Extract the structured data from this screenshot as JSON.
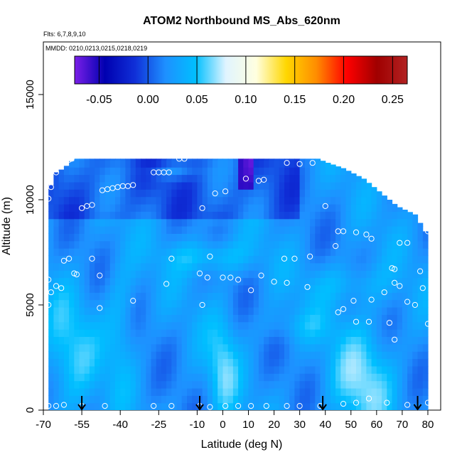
{
  "chart_data": {
    "type": "heatmap",
    "title": "ATOM2 Northbound MS_Abs_620nm",
    "flights_label": "Flts: 6,7,8,9,10",
    "dates_label": "MMDD: 0210,0213,0215,0218,0219",
    "xlabel": "Latitude (deg N)",
    "ylabel": "Altitude (m)",
    "xlim": [
      -70,
      85
    ],
    "ylim": [
      0,
      17500
    ],
    "x_ticks": [
      -70,
      -55,
      -40,
      -25,
      -10,
      0,
      10,
      20,
      30,
      40,
      50,
      60,
      70,
      80
    ],
    "x_tick_labels": [
      "-70",
      "-55",
      "-40",
      "-25",
      "-10",
      "0",
      "10",
      "20",
      "30",
      "40",
      "50",
      "60",
      "70",
      "80"
    ],
    "y_ticks": [
      0,
      5000,
      10000,
      15000
    ],
    "y_tick_labels": [
      "0",
      "5000",
      "10000",
      "15000"
    ],
    "colorbar": {
      "range": [
        -0.075,
        0.265
      ],
      "ticks": [
        -0.05,
        0.0,
        0.05,
        0.1,
        0.15,
        0.2,
        0.25
      ],
      "tick_labels": [
        "-0.05",
        "0.00",
        "0.05",
        "0.10",
        "0.15",
        "0.20",
        "0.25"
      ],
      "colors": [
        "#7B1FE8",
        "#0000B0",
        "#1030D8",
        "#1E90FF",
        "#00BFFF",
        "#E0F4FF",
        "#FFFFE0",
        "#FFD700",
        "#FF8C00",
        "#FF0000",
        "#A00000",
        "#B22222"
      ]
    },
    "profile_top": [
      [
        -68,
        10000
      ],
      [
        -67,
        10700
      ],
      [
        -65,
        11300
      ],
      [
        -62,
        11500
      ],
      [
        -58,
        11950
      ],
      [
        -40,
        11950
      ],
      [
        -25,
        11950
      ],
      [
        -10,
        11950
      ],
      [
        0,
        11950
      ],
      [
        10,
        11950
      ],
      [
        17,
        11950
      ],
      [
        25,
        11950
      ],
      [
        37,
        11950
      ],
      [
        40,
        11800
      ],
      [
        47,
        11500
      ],
      [
        55,
        11000
      ],
      [
        62,
        10300
      ],
      [
        68,
        9700
      ],
      [
        75,
        9300
      ],
      [
        79,
        8500
      ],
      [
        80,
        6000
      ],
      [
        80,
        3500
      ],
      [
        80,
        0
      ]
    ],
    "sample_points": [
      [
        -68,
        10050
      ],
      [
        -67,
        10600
      ],
      [
        -65,
        11300
      ],
      [
        -60,
        11900
      ],
      [
        -59,
        11950
      ],
      [
        -47,
        10450
      ],
      [
        -45,
        10500
      ],
      [
        -43,
        10550
      ],
      [
        -41,
        10600
      ],
      [
        -39,
        10650
      ],
      [
        -37,
        10650
      ],
      [
        -35,
        10700
      ],
      [
        -27,
        11300
      ],
      [
        -25,
        11300
      ],
      [
        -23,
        11300
      ],
      [
        -21,
        11300
      ],
      [
        -17,
        11950
      ],
      [
        -15,
        11950
      ],
      [
        -3,
        10300
      ],
      [
        1,
        10400
      ],
      [
        9,
        11000
      ],
      [
        14,
        10900
      ],
      [
        16,
        10950
      ],
      [
        25,
        11750
      ],
      [
        30,
        11700
      ],
      [
        35,
        11750
      ],
      [
        -55,
        9600
      ],
      [
        -53,
        9700
      ],
      [
        -51,
        9750
      ],
      [
        -8,
        9600
      ],
      [
        40,
        9700
      ],
      [
        45,
        8500
      ],
      [
        47,
        8500
      ],
      [
        52,
        8450
      ],
      [
        56,
        8350
      ],
      [
        58,
        8150
      ],
      [
        69,
        7950
      ],
      [
        72,
        7950
      ],
      [
        80,
        8500
      ],
      [
        -62,
        7100
      ],
      [
        -60,
        7200
      ],
      [
        -58,
        6500
      ],
      [
        -57,
        6450
      ],
      [
        -51,
        7200
      ],
      [
        -20,
        7200
      ],
      [
        -5,
        7300
      ],
      [
        24,
        7200
      ],
      [
        28,
        7200
      ],
      [
        34,
        7300
      ],
      [
        44,
        7800
      ],
      [
        66,
        6750
      ],
      [
        67,
        6700
      ],
      [
        77,
        6600
      ],
      [
        -68,
        6200
      ],
      [
        -67,
        5600
      ],
      [
        -65,
        5900
      ],
      [
        -63,
        5800
      ],
      [
        -48,
        6400
      ],
      [
        -35,
        5200
      ],
      [
        -22,
        6000
      ],
      [
        -9,
        6500
      ],
      [
        -6,
        6300
      ],
      [
        0,
        6300
      ],
      [
        3,
        6300
      ],
      [
        6,
        6200
      ],
      [
        11,
        5700
      ],
      [
        15,
        6400
      ],
      [
        20,
        6100
      ],
      [
        25,
        6050
      ],
      [
        33,
        5850
      ],
      [
        45,
        4650
      ],
      [
        47,
        4800
      ],
      [
        51,
        5200
      ],
      [
        58,
        5250
      ],
      [
        63,
        5600
      ],
      [
        67,
        6050
      ],
      [
        69,
        5900
      ],
      [
        72,
        5150
      ],
      [
        75,
        5000
      ],
      [
        78,
        5800
      ],
      [
        80,
        4100
      ],
      [
        -68,
        5000
      ],
      [
        -48,
        4850
      ],
      [
        -8,
        5000
      ],
      [
        52,
        4200
      ],
      [
        57,
        4200
      ],
      [
        65,
        4150
      ],
      [
        67,
        3350
      ],
      [
        -68,
        200
      ],
      [
        -65,
        200
      ],
      [
        -62,
        250
      ],
      [
        -55,
        200
      ],
      [
        -46,
        200
      ],
      [
        -27,
        200
      ],
      [
        -20,
        200
      ],
      [
        -9,
        200
      ],
      [
        -5,
        150
      ],
      [
        1,
        200
      ],
      [
        6,
        200
      ],
      [
        11,
        200
      ],
      [
        17,
        200
      ],
      [
        25,
        200
      ],
      [
        30,
        200
      ],
      [
        38,
        200
      ],
      [
        47,
        300
      ],
      [
        52,
        350
      ],
      [
        57,
        550
      ],
      [
        64,
        350
      ],
      [
        72,
        250
      ],
      [
        80,
        350
      ]
    ],
    "flight_markers": [
      -55,
      -9,
      39,
      76
    ],
    "grid": false
  }
}
